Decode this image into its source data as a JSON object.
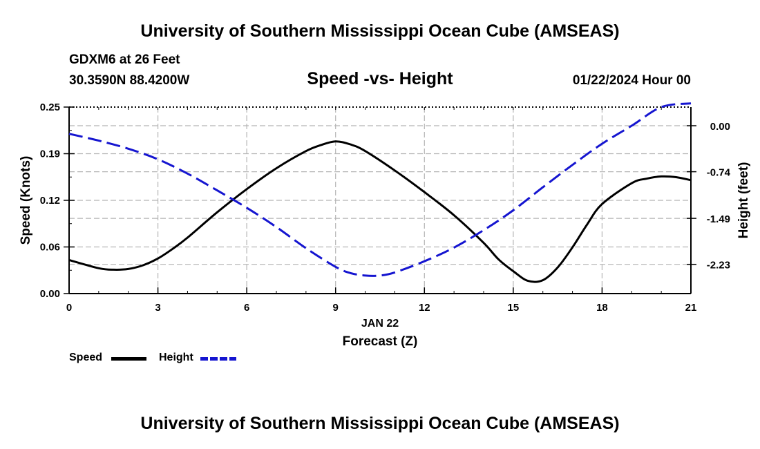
{
  "header": {
    "title": "University of Southern Mississippi Ocean Cube (AMSEAS)",
    "station": "GDXM6 at 26 Feet",
    "coords": "30.3590N  88.4200W",
    "subtitle": "Speed -vs- Height",
    "datetime": "01/22/2024 Hour 00"
  },
  "footer": {
    "title": "University of Southern Mississippi Ocean Cube (AMSEAS)"
  },
  "legend": {
    "speed_label": "Speed",
    "height_label": "Height",
    "speed_color": "#000000",
    "height_color": "#1515d0"
  },
  "chart_data": {
    "type": "line",
    "title": "Speed -vs- Height",
    "xlabel": "Forecast (Z)",
    "xlabel_date": "JAN 22",
    "ylabel": "Speed (Knots)",
    "y2label": "Height (feet)",
    "xlim": [
      0,
      21
    ],
    "ylim": [
      0,
      0.25
    ],
    "y2lim": [
      -2.7,
      0.3
    ],
    "x_ticks": [
      0,
      3,
      6,
      9,
      12,
      15,
      18,
      21
    ],
    "x_tick_labels": [
      "0",
      "3",
      "6",
      "9",
      "12",
      "15",
      "18",
      "21"
    ],
    "y_ticks": [
      0,
      0.0625,
      0.125,
      0.1875,
      0.25
    ],
    "y_tick_labels": [
      "0.00",
      "0.06",
      "0.12",
      "0.19",
      "0.25"
    ],
    "y2_ticks": [
      0.0,
      -0.74,
      -1.49,
      -2.23
    ],
    "y2_tick_labels": [
      "0.00",
      "-0.74",
      "-1.49",
      "-2.23"
    ],
    "grid": true,
    "series": [
      {
        "name": "Speed",
        "axis": "left",
        "style": "solid",
        "color": "#000000",
        "x": [
          0,
          1,
          1.5,
          2,
          2.5,
          3,
          3.5,
          4,
          5,
          6,
          7,
          8,
          8.5,
          9,
          9.5,
          10,
          11,
          12,
          13,
          14,
          14.5,
          15,
          15.5,
          16,
          16.5,
          17,
          17.5,
          18,
          19,
          19.5,
          20,
          20.5,
          21
        ],
        "y": [
          0.045,
          0.034,
          0.032,
          0.033,
          0.038,
          0.047,
          0.06,
          0.075,
          0.109,
          0.14,
          0.168,
          0.191,
          0.199,
          0.204,
          0.2,
          0.191,
          0.165,
          0.136,
          0.105,
          0.068,
          0.046,
          0.03,
          0.017,
          0.018,
          0.035,
          0.062,
          0.093,
          0.12,
          0.148,
          0.154,
          0.157,
          0.156,
          0.152
        ]
      },
      {
        "name": "Height",
        "axis": "right",
        "style": "dashed",
        "color": "#1515d0",
        "x": [
          0,
          1,
          2,
          3,
          4,
          5,
          6,
          7,
          8,
          9,
          9.5,
          10,
          10.5,
          11,
          12,
          13,
          14,
          15,
          16,
          17,
          18,
          19,
          20,
          21
        ],
        "y": [
          -0.13,
          -0.24,
          -0.37,
          -0.54,
          -0.77,
          -1.04,
          -1.32,
          -1.63,
          -1.97,
          -2.27,
          -2.37,
          -2.41,
          -2.41,
          -2.36,
          -2.18,
          -1.96,
          -1.68,
          -1.36,
          -0.99,
          -0.63,
          -0.29,
          0.0,
          0.3,
          0.36
        ]
      }
    ]
  }
}
